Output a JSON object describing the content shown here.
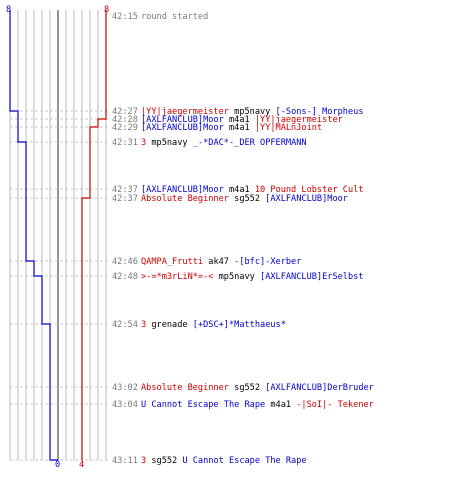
{
  "colors": {
    "blue": "#0000cc",
    "red": "#cc0000",
    "grid": "#b8b8b8",
    "gray_text": "#7a7a7a",
    "center": "#666666",
    "dash": "#c8c8c8",
    "black": "#000000"
  },
  "chart_data": {
    "type": "line",
    "series": [
      {
        "name": "",
        "color": "blue",
        "start_score": 8,
        "end_score": 0
      },
      {
        "name": "",
        "color": "red",
        "start_score": 8,
        "end_score": 4
      }
    ],
    "top_labels": {
      "blue": "8",
      "red": "8"
    },
    "bottom_labels": {
      "blue": "0",
      "red": "4"
    }
  },
  "events": [
    {
      "time": "42:15",
      "parts": [
        {
          "text": "round started",
          "c": "gray_text"
        }
      ]
    },
    {
      "time": "42:27",
      "parts": [
        {
          "text": "|YY|jaegermeister",
          "c": "red"
        },
        {
          "text": " mp5navy ",
          "c": "black"
        },
        {
          "text": "[-Sons-] Morpheus",
          "c": "blue"
        }
      ]
    },
    {
      "time": "42:28",
      "parts": [
        {
          "text": "[AXLFANCLUB]Moor",
          "c": "blue"
        },
        {
          "text": " m4a1 ",
          "c": "black"
        },
        {
          "text": "|YY|jaegermeister",
          "c": "red"
        }
      ]
    },
    {
      "time": "42:29",
      "parts": [
        {
          "text": "[AXLFANCLUB]Moor",
          "c": "blue"
        },
        {
          "text": " m4a1 ",
          "c": "black"
        },
        {
          "text": "|YY|MALnJoint",
          "c": "red"
        }
      ]
    },
    {
      "time": "42:31",
      "parts": [
        {
          "text": "3",
          "c": "red"
        },
        {
          "text": " mp5navy ",
          "c": "black"
        },
        {
          "text": "_-*DAC*-_DER OPFERMANN",
          "c": "blue"
        }
      ]
    },
    {
      "time": "42:37",
      "parts": [
        {
          "text": "[AXLFANCLUB]Moor",
          "c": "blue"
        },
        {
          "text": " m4a1 ",
          "c": "black"
        },
        {
          "text": "10 Pound Lobster Cult",
          "c": "red"
        }
      ]
    },
    {
      "time": "42:37",
      "parts": [
        {
          "text": "Absolute Beginner",
          "c": "red"
        },
        {
          "text": " sg552 ",
          "c": "black"
        },
        {
          "text": "[AXLFANCLUB]Moor",
          "c": "blue"
        }
      ]
    },
    {
      "time": "42:46",
      "parts": [
        {
          "text": "QAMPA_Frutti",
          "c": "red"
        },
        {
          "text": " ak47 ",
          "c": "black"
        },
        {
          "text": "-[bfc]-Xerber",
          "c": "blue"
        }
      ]
    },
    {
      "time": "42:48",
      "parts": [
        {
          "text": ">-=*m3rLiN*=-<",
          "c": "red"
        },
        {
          "text": " mp5navy ",
          "c": "black"
        },
        {
          "text": "[AXLFANCLUB]ErSelbst",
          "c": "blue"
        }
      ]
    },
    {
      "time": "42:54",
      "parts": [
        {
          "text": "3",
          "c": "red"
        },
        {
          "text": " grenade ",
          "c": "black"
        },
        {
          "text": "[+DSC+]*Matthaeus*",
          "c": "blue"
        }
      ]
    },
    {
      "time": "43:02",
      "parts": [
        {
          "text": "Absolute Beginner",
          "c": "red"
        },
        {
          "text": " sg552 ",
          "c": "black"
        },
        {
          "text": "[AXLFANCLUB]DerBruder",
          "c": "blue"
        }
      ]
    },
    {
      "time": "43:04",
      "parts": [
        {
          "text": "U Cannot Escape The Rape",
          "c": "blue"
        },
        {
          "text": " m4a1 ",
          "c": "black"
        },
        {
          "text": "-|SoI|- Tekener",
          "c": "red"
        }
      ]
    },
    {
      "time": "43:11",
      "parts": [
        {
          "text": "3",
          "c": "red"
        },
        {
          "text": " sg552 ",
          "c": "black"
        },
        {
          "text": "U Cannot Escape The Rape",
          "c": "blue"
        }
      ]
    }
  ]
}
